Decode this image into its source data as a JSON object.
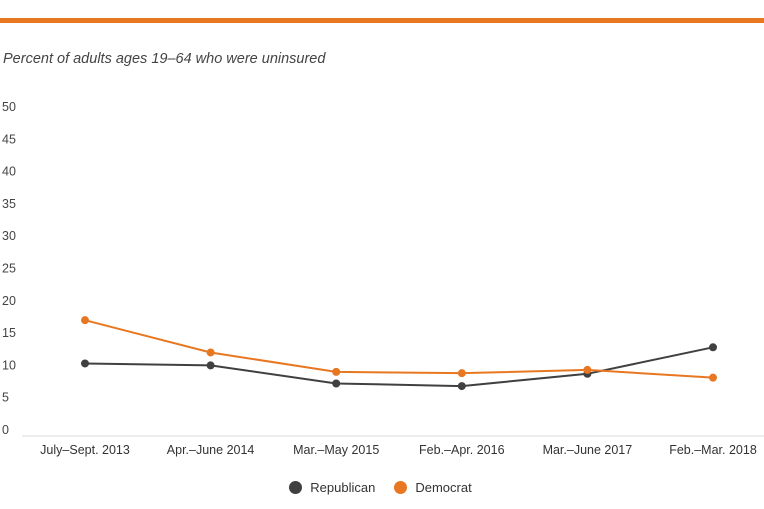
{
  "colors": {
    "accent": "#E87722",
    "republican": "#404040",
    "democrat": "#E87722",
    "axis": "#d9d9d9"
  },
  "chart_data": {
    "type": "line",
    "subtitle": "Percent of adults ages 19–64 who were uninsured",
    "categories": [
      "July–Sept. 2013",
      "Apr.–June 2014",
      "Mar.–May 2015",
      "Feb.–Apr. 2016",
      "Mar.–June 2017",
      "Feb.–Mar. 2018"
    ],
    "series": [
      {
        "name": "Republican",
        "values": [
          10.3,
          10.0,
          7.2,
          6.8,
          8.7,
          12.8
        ]
      },
      {
        "name": "Democrat",
        "values": [
          17.0,
          12.0,
          9.0,
          8.8,
          9.3,
          8.1
        ]
      }
    ],
    "ylim": [
      0,
      50
    ],
    "yticks": [
      "0",
      "5",
      "10",
      "15",
      "20",
      "25",
      "30",
      "35",
      "40",
      "45",
      "50"
    ],
    "grid": false,
    "legend_position": "bottom-center"
  }
}
